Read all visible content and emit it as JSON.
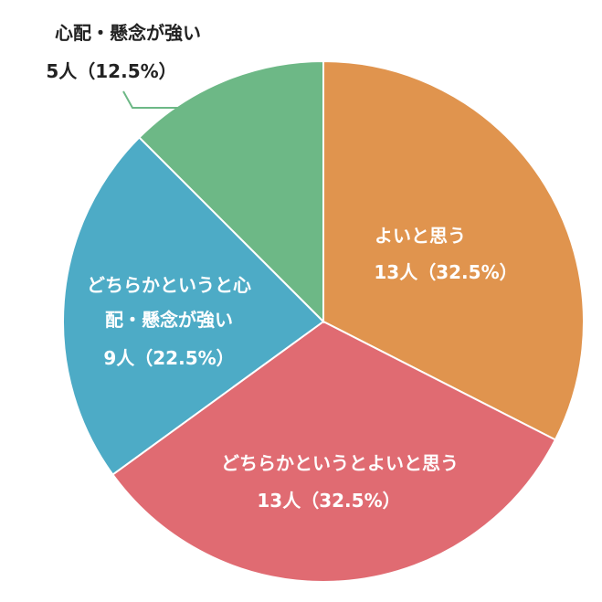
{
  "chart_data": {
    "type": "pie",
    "categories": [
      "よいと思う",
      "どちらかというとよいと思う",
      "どちらかというと心配・懸念が強い",
      "心配・懸念が強い"
    ],
    "values": [
      13,
      13,
      9,
      5
    ],
    "value_labels": [
      "13人（32.5%）",
      "13人（32.5%）",
      "9人（22.5%）",
      "5人（12.5%）"
    ],
    "colors": [
      "#e0944e",
      "#e06b72",
      "#4dabc6",
      "#6db886"
    ]
  }
}
